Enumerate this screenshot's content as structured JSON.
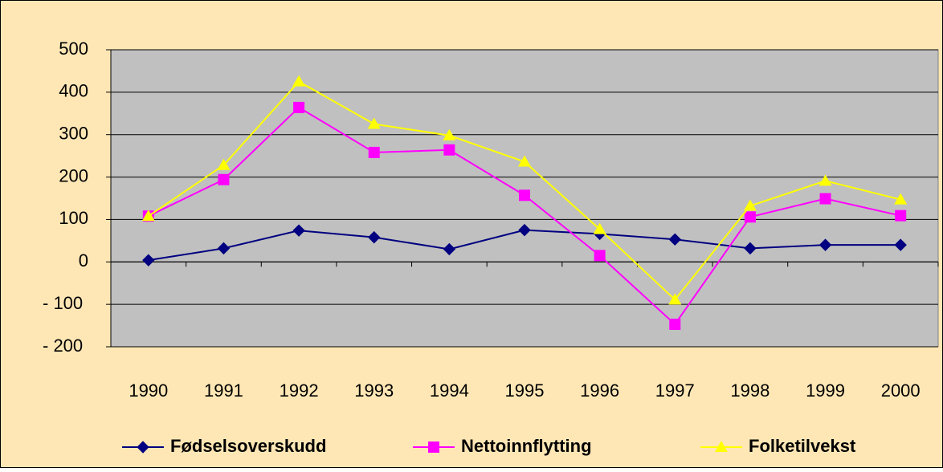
{
  "chart_data": {
    "type": "line",
    "categories": [
      "1990",
      "1991",
      "1992",
      "1993",
      "1994",
      "1995",
      "1996",
      "1997",
      "1998",
      "1999",
      "2000"
    ],
    "series": [
      {
        "name": "Fødselsoverskudd",
        "color": "#000080",
        "marker": "diamond",
        "values": [
          4,
          32,
          74,
          58,
          30,
          75,
          66,
          53,
          32,
          40,
          40
        ]
      },
      {
        "name": "Nettoinnflytting",
        "color": "#ff00ff",
        "marker": "square",
        "values": [
          108,
          194,
          364,
          258,
          264,
          157,
          15,
          -147,
          106,
          149,
          109
        ]
      },
      {
        "name": "Folketilvekst",
        "color": "#ffff00",
        "marker": "triangle",
        "values": [
          108,
          228,
          425,
          325,
          298,
          236,
          77,
          -89,
          132,
          191,
          147
        ]
      }
    ],
    "ylim": [
      -200,
      500
    ],
    "yticks": [
      {
        "value": -200,
        "label": "- 200"
      },
      {
        "value": -100,
        "label": "- 100"
      },
      0,
      100,
      200,
      300,
      400,
      500
    ],
    "grid": true,
    "legend": "bottom"
  }
}
